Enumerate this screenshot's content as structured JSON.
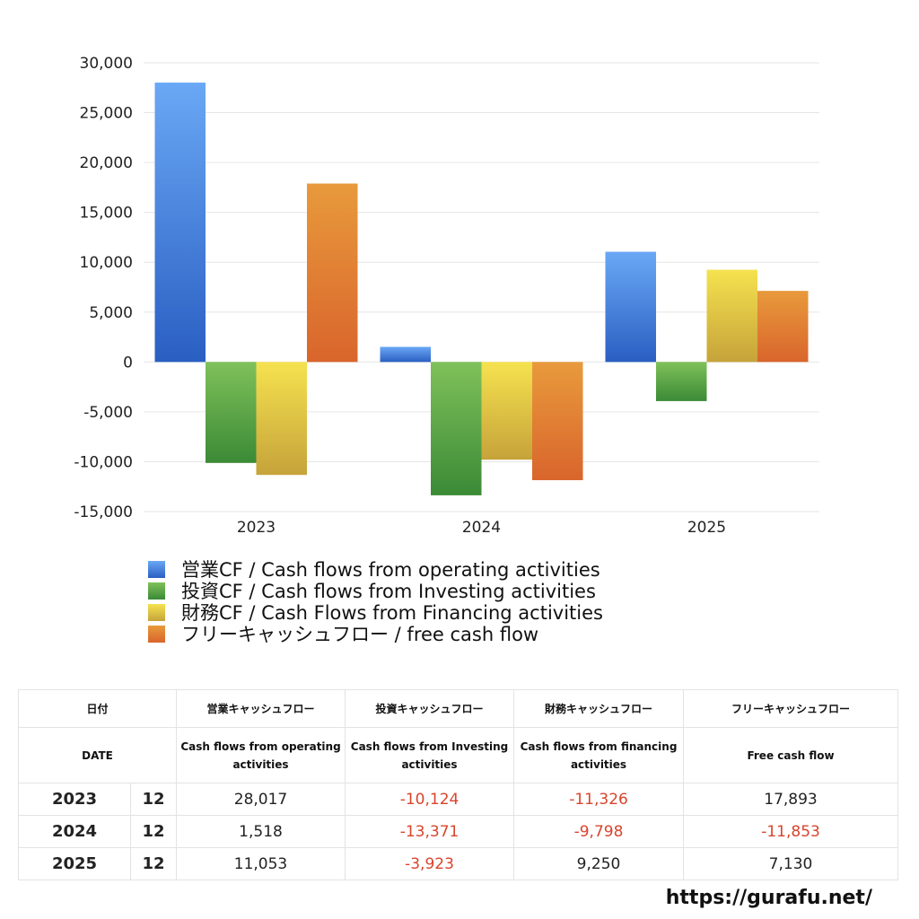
{
  "chart_data": {
    "type": "bar",
    "categories": [
      "2023",
      "2024",
      "2025"
    ],
    "series": [
      {
        "name": "営業CF / Cash flows from operating activities",
        "values": [
          28017,
          1518,
          11053
        ],
        "color_top": "#6aa8f5",
        "color_bottom": "#2a5fc2"
      },
      {
        "name": "投資CF / Cash flows from Investing activities",
        "values": [
          -10124,
          -13371,
          -3923
        ],
        "color_top": "#7fc15a",
        "color_bottom": "#3b8a36"
      },
      {
        "name": "財務CF / Cash Flows from Financing activities",
        "values": [
          -11326,
          -9798,
          9250
        ],
        "color_top": "#f5e24f",
        "color_bottom": "#c6a33a"
      },
      {
        "name": "フリーキャッシュフロー / free cash flow",
        "values": [
          17893,
          -11853,
          7130
        ],
        "color_top": "#e89a3c",
        "color_bottom": "#d9652c"
      }
    ],
    "ylim": [
      -15000,
      30000
    ],
    "yticks": [
      30000,
      25000,
      20000,
      15000,
      10000,
      5000,
      0,
      -5000,
      -10000,
      -15000
    ],
    "ytick_labels": [
      "30,000",
      "25,000",
      "20,000",
      "15,000",
      "10,000",
      "5,000",
      "0",
      "-5,000",
      "-10,000",
      "-15,000"
    ],
    "grid": true,
    "legend_position": "bottom-left"
  },
  "table": {
    "headers_ja": [
      "日付",
      "営業キャッシュフロー",
      "投資キャッシュフロー",
      "財務キャッシュフロー",
      "フリーキャッシュフロー"
    ],
    "headers_en": [
      "DATE",
      "Cash flows from operating activities",
      "Cash flows from Investing activities",
      "Cash flows from financing activities",
      "Free cash flow"
    ],
    "rows": [
      {
        "year": "2023",
        "month": "12",
        "values": [
          "28,017",
          "-10,124",
          "-11,326",
          "17,893"
        ]
      },
      {
        "year": "2024",
        "month": "12",
        "values": [
          "1,518",
          "-13,371",
          "-9,798",
          "-11,853"
        ]
      },
      {
        "year": "2025",
        "month": "12",
        "values": [
          "11,053",
          "-3,923",
          "9,250",
          "7,130"
        ]
      }
    ]
  },
  "site": "https://gurafu.net/"
}
